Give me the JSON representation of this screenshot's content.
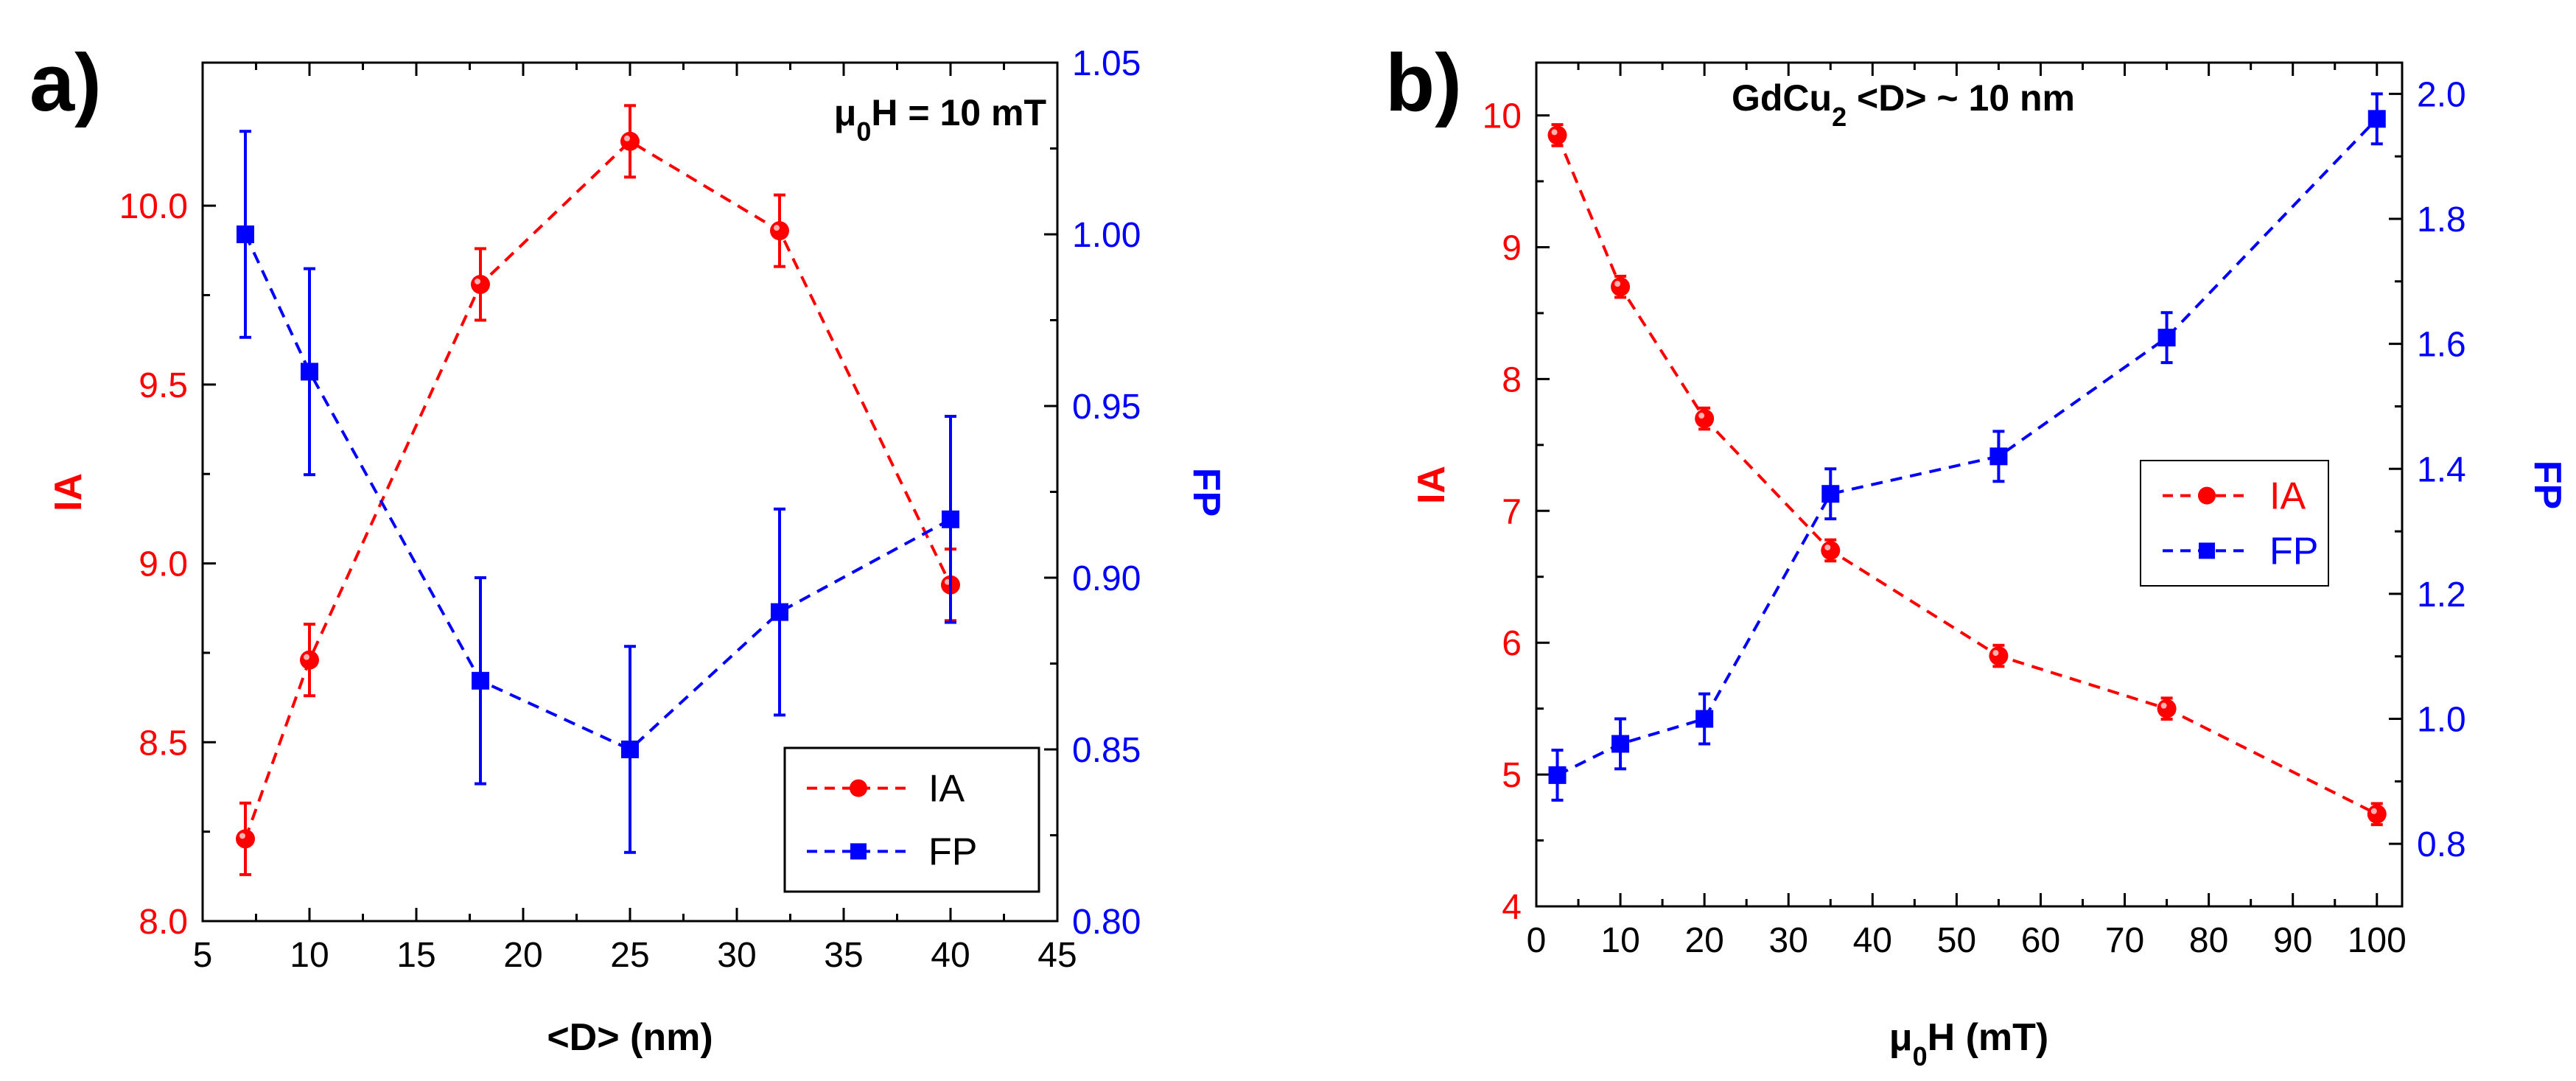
{
  "chart_data": [
    {
      "panel": "a)",
      "type": "scatter",
      "annotation": {
        "prefix": "μ",
        "sub": "0",
        "suffix": "H = 10 mT"
      },
      "xlabel": "<D> (nm)",
      "ylabel_left": "IA",
      "ylabel_right": "FP",
      "xlim": [
        5,
        45
      ],
      "ylim_left": [
        8.0,
        10.4
      ],
      "ylim_right": [
        0.8,
        1.05
      ],
      "xticks": [
        5,
        10,
        15,
        20,
        25,
        30,
        35,
        40,
        45
      ],
      "xtick_labels": [
        "5",
        "10",
        "15",
        "20",
        "25",
        "30",
        "35",
        "40",
        "45"
      ],
      "yticks_left": [
        8.0,
        8.5,
        9.0,
        9.5,
        10.0
      ],
      "ytick_labels_left": [
        "8.0",
        "8.5",
        "9.0",
        "9.5",
        "10.0"
      ],
      "yticks_right": [
        0.8,
        0.85,
        0.9,
        0.95,
        1.0,
        1.05
      ],
      "ytick_labels_right": [
        "0.80",
        "0.85",
        "0.90",
        "0.95",
        "1.00",
        "1.05"
      ],
      "legend": {
        "position": "bottom-right",
        "entries": [
          "IA",
          "FP"
        ]
      },
      "series": [
        {
          "name": "IA",
          "axis": "left",
          "color": "#ff0000",
          "marker": "circle",
          "x": [
            7,
            10,
            18,
            25,
            32,
            40
          ],
          "y": [
            8.23,
            8.73,
            9.78,
            10.18,
            9.93,
            8.94
          ],
          "err": [
            0.1,
            0.1,
            0.1,
            0.1,
            0.1,
            0.1
          ]
        },
        {
          "name": "FP",
          "axis": "right",
          "color": "#0000ff",
          "marker": "square",
          "x": [
            7,
            10,
            18,
            25,
            32,
            40
          ],
          "y": [
            1.0,
            0.96,
            0.87,
            0.85,
            0.89,
            0.917
          ],
          "err": [
            0.03,
            0.03,
            0.03,
            0.03,
            0.03,
            0.03
          ]
        }
      ]
    },
    {
      "panel": "b)",
      "type": "scatter",
      "annotation": {
        "prefix": "GdCu",
        "sub": "2",
        "suffix": " <D> ~ 10 nm"
      },
      "xlabel_prefix": "μ",
      "xlabel_sub": "0",
      "xlabel_suffix": "H (mT)",
      "ylabel_left": "IA",
      "ylabel_right": "FP",
      "xlim": [
        0,
        103
      ],
      "ylim_left": [
        4,
        10.4
      ],
      "ylim_right": [
        0.7,
        2.05
      ],
      "xticks": [
        0,
        10,
        20,
        30,
        40,
        50,
        60,
        70,
        80,
        90,
        100
      ],
      "xtick_labels": [
        "0",
        "10",
        "20",
        "30",
        "40",
        "50",
        "60",
        "70",
        "80",
        "90",
        "100"
      ],
      "yticks_left": [
        4,
        5,
        6,
        7,
        8,
        9,
        10
      ],
      "ytick_labels_left": [
        "4",
        "5",
        "6",
        "7",
        "8",
        "9",
        "10"
      ],
      "yticks_right": [
        0.8,
        1.0,
        1.2,
        1.4,
        1.6,
        1.8,
        2.0
      ],
      "ytick_labels_right": [
        "0.8",
        "1.0",
        "1.2",
        "1.4",
        "1.6",
        "1.8",
        "2.0"
      ],
      "legend": {
        "position": "center-right",
        "entries": [
          "IA",
          "FP"
        ]
      },
      "series": [
        {
          "name": "IA",
          "axis": "left",
          "color": "#ff0000",
          "marker": "circle",
          "x": [
            2.5,
            10,
            20,
            35,
            55,
            75,
            100
          ],
          "y": [
            9.85,
            8.7,
            7.7,
            6.7,
            5.9,
            5.5,
            4.7
          ],
          "err": [
            0.08,
            0.08,
            0.08,
            0.08,
            0.08,
            0.08,
            0.08
          ]
        },
        {
          "name": "FP",
          "axis": "right",
          "color": "#0000ff",
          "marker": "square",
          "x": [
            2.5,
            10,
            20,
            35,
            55,
            75,
            100
          ],
          "y": [
            0.91,
            0.96,
            1.0,
            1.36,
            1.42,
            1.61,
            1.96
          ],
          "err": [
            0.04,
            0.04,
            0.04,
            0.04,
            0.04,
            0.04,
            0.04
          ]
        }
      ]
    }
  ]
}
